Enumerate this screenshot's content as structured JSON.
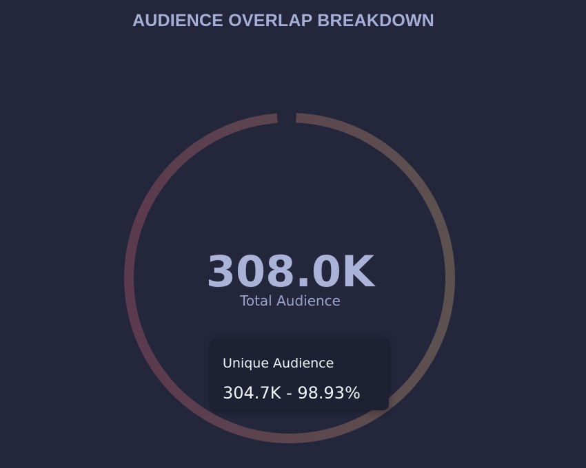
{
  "title": "AUDIENCE OVERLAP BREAKDOWN",
  "center": {
    "value": "308.0K",
    "label": "Total Audience"
  },
  "tooltip": {
    "title": "Unique Audience",
    "value_text": "304.7K - 98.93%"
  },
  "chart_data": {
    "type": "pie",
    "donut": true,
    "total": 308.0,
    "unit": "K",
    "slices": [
      {
        "name": "Unique Audience",
        "value": 304.7,
        "percent": 98.93,
        "color_start": "#5b3a4d",
        "color_end": "#5d5150"
      },
      {
        "value": 3.3,
        "percent": 1.07,
        "color": "#24273c"
      }
    ]
  }
}
